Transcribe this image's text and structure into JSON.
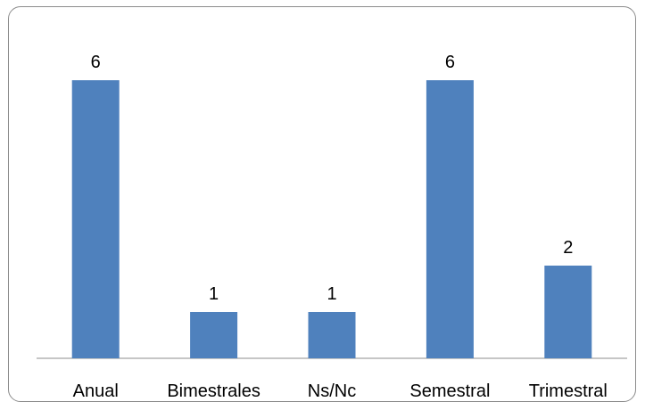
{
  "chart_data": {
    "type": "bar",
    "categories": [
      "Anual",
      "Bimestrales",
      "Ns/Nc",
      "Semestral",
      "Trimestral"
    ],
    "values": [
      6,
      1,
      1,
      6,
      2
    ],
    "data_labels": [
      "6",
      "1",
      "1",
      "6",
      "2"
    ],
    "title": "",
    "xlabel": "",
    "ylabel": "",
    "ylim": [
      0,
      6
    ],
    "grid": false,
    "legend": "none",
    "colors": {
      "bar": "#4F81BD",
      "axis": "#8c8c8c"
    }
  }
}
